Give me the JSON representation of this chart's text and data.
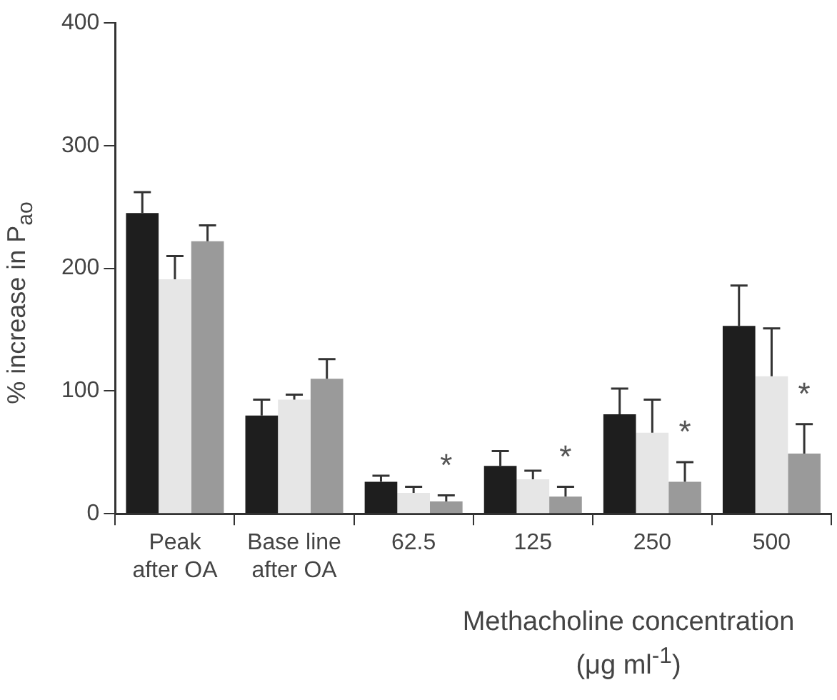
{
  "chart_data": {
    "type": "bar",
    "ylabel": "% increase in P$_{ao}$",
    "xlabel": "Methacholine concentration (μg ml$^{-1}$)",
    "categories": [
      "Peak\nafter OA",
      "Base line\nafter OA",
      "62.5",
      "125",
      "250",
      "500"
    ],
    "series": [
      {
        "color": "#1e1e1e",
        "values": [
          245,
          80,
          26,
          39,
          81,
          153
        ],
        "errors": [
          [
            245,
            262
          ],
          [
            80,
            93
          ],
          [
            26,
            31
          ],
          [
            39,
            51
          ],
          [
            81,
            102
          ],
          [
            153,
            186
          ]
        ]
      },
      {
        "color": "#e6e6e6",
        "values": [
          191,
          93,
          17,
          28,
          66,
          112
        ],
        "errors": [
          [
            191,
            210
          ],
          [
            93,
            97
          ],
          [
            17,
            22
          ],
          [
            28,
            35
          ],
          [
            66,
            93
          ],
          [
            112,
            151
          ]
        ]
      },
      {
        "color": "#9a9a9a",
        "values": [
          222,
          110,
          10,
          14,
          26,
          49
        ],
        "errors": [
          [
            222,
            235
          ],
          [
            110,
            126
          ],
          [
            10,
            15
          ],
          [
            14,
            22
          ],
          [
            26,
            42
          ],
          [
            49,
            73
          ]
        ]
      }
    ],
    "annotations": [
      "*",
      "*",
      "*",
      "*"
    ],
    "ylim": [
      0,
      400
    ],
    "yticks": [
      0,
      100,
      200,
      300,
      400
    ],
    "grid": false,
    "legend": false
  }
}
